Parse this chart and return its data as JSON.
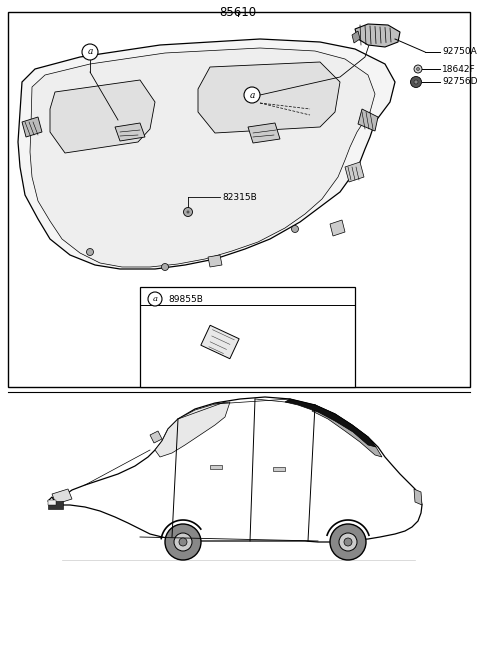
{
  "bg_color": "#ffffff",
  "title": "85610",
  "font_size_title": 8.5,
  "font_size_label": 6.5,
  "font_size_small": 5.5,
  "label_92750A": "92750A",
  "label_18642F": "18642F",
  "label_92756D": "92756D",
  "label_82315B": "82315B",
  "label_89855B": "89855B"
}
